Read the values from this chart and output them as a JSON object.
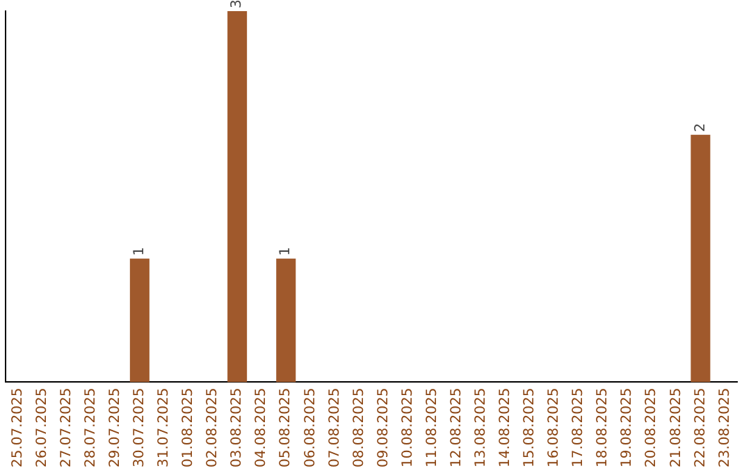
{
  "chart_data": {
    "type": "bar",
    "categories": [
      "25.07.2025",
      "26.07.2025",
      "27.07.2025",
      "28.07.2025",
      "29.07.2025",
      "30.07.2025",
      "31.07.2025",
      "01.08.2025",
      "02.08.2025",
      "03.08.2025",
      "04.08.2025",
      "05.08.2025",
      "06.08.2025",
      "07.08.2025",
      "08.08.2025",
      "09.08.2025",
      "10.08.2025",
      "11.08.2025",
      "12.08.2025",
      "13.08.2025",
      "14.08.2025",
      "15.08.2025",
      "16.08.2025",
      "17.08.2025",
      "18.08.2025",
      "19.08.2025",
      "20.08.2025",
      "21.08.2025",
      "22.08.2025",
      "23.08.2025"
    ],
    "values": [
      0,
      0,
      0,
      0,
      0,
      1,
      0,
      0,
      0,
      3,
      0,
      1,
      0,
      0,
      0,
      0,
      0,
      0,
      0,
      0,
      0,
      0,
      0,
      0,
      0,
      0,
      0,
      0,
      2,
      0
    ],
    "value_labels": [
      null,
      null,
      null,
      null,
      null,
      "1",
      null,
      null,
      null,
      "3",
      null,
      "1",
      null,
      null,
      null,
      null,
      null,
      null,
      null,
      null,
      null,
      null,
      null,
      null,
      null,
      null,
      null,
      null,
      "2",
      null
    ],
    "color": "#a0592c",
    "grid": false,
    "legend": false,
    "tick_labels": "x"
  }
}
